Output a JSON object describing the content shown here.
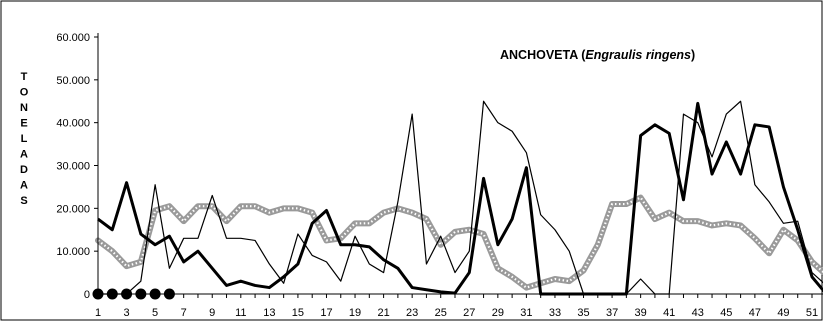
{
  "chart_data": {
    "type": "line",
    "title": {
      "prefix": "ANCHOVETA (",
      "italic": "Engraulis ringens",
      "suffix": ")"
    },
    "ylabel": "TONELADAS",
    "ylim": [
      0,
      60000
    ],
    "xlim": [
      1,
      52
    ],
    "y_ticks": [
      0,
      10000,
      20000,
      30000,
      40000,
      50000,
      60000
    ],
    "y_tick_labels": [
      "0",
      "10.000",
      "20.000",
      "30.000",
      "40.000",
      "50.000",
      "60.000"
    ],
    "x_tick_labels": [
      "1",
      "3",
      "5",
      "7",
      "9",
      "11",
      "13",
      "15",
      "17",
      "19",
      "21",
      "23",
      "25",
      "27",
      "29",
      "31",
      "33",
      "35",
      "37",
      "39",
      "41",
      "43",
      "45",
      "47",
      "49",
      "51"
    ],
    "grid": false,
    "legend": "none",
    "series": [
      {
        "style": "thick",
        "color": "#000000",
        "x": [
          1,
          2,
          3,
          4,
          5,
          6,
          7,
          8,
          9,
          10,
          11,
          12,
          13,
          14,
          15,
          16,
          17,
          18,
          19,
          20,
          21,
          22,
          23,
          24,
          25,
          26,
          27,
          28,
          29,
          30,
          31,
          32,
          33,
          34,
          35,
          36,
          37,
          38,
          39,
          40,
          41,
          42,
          43,
          44,
          45,
          46,
          47,
          48,
          49,
          50,
          51,
          52
        ],
        "values": [
          17500,
          15000,
          26000,
          14000,
          11500,
          13500,
          7500,
          10000,
          6000,
          2000,
          3000,
          2000,
          1500,
          4000,
          7000,
          16500,
          19500,
          11500,
          11500,
          11000,
          8000,
          6000,
          1500,
          1000,
          500,
          200,
          5000,
          27000,
          11500,
          17500,
          29500,
          0,
          0,
          0,
          0,
          0,
          0,
          0,
          37000,
          39500,
          37500,
          22000,
          44500,
          28000,
          35500,
          28000,
          39500,
          39000,
          25000,
          15000,
          4000,
          0
        ]
      },
      {
        "style": "thin",
        "color": "#000000",
        "x": [
          1,
          2,
          3,
          4,
          5,
          6,
          7,
          8,
          9,
          10,
          11,
          12,
          13,
          14,
          15,
          16,
          17,
          18,
          19,
          20,
          21,
          22,
          23,
          24,
          25,
          26,
          27,
          28,
          29,
          30,
          31,
          32,
          33,
          34,
          35,
          36,
          37,
          38,
          39,
          40,
          41,
          42,
          43,
          44,
          45,
          46,
          47,
          48,
          49,
          50,
          51,
          52
        ],
        "values": [
          0,
          0,
          0,
          3000,
          25500,
          6000,
          13000,
          13000,
          23000,
          13000,
          13000,
          12500,
          7000,
          2500,
          14000,
          9000,
          7500,
          3000,
          13500,
          7000,
          5000,
          21500,
          42000,
          7000,
          13500,
          5000,
          10000,
          45000,
          40000,
          38000,
          33000,
          18500,
          15000,
          10000,
          0,
          0,
          0,
          0,
          3500,
          0,
          0,
          42000,
          40000,
          32000,
          42000,
          45000,
          25500,
          21500,
          16500,
          17000,
          5000,
          2000
        ]
      },
      {
        "style": "grey-dotted",
        "color": "#a0a0a0",
        "x": [
          1,
          2,
          3,
          4,
          5,
          6,
          7,
          8,
          9,
          10,
          11,
          12,
          13,
          14,
          15,
          16,
          17,
          18,
          19,
          20,
          21,
          22,
          23,
          24,
          25,
          26,
          27,
          28,
          29,
          30,
          31,
          32,
          33,
          34,
          35,
          36,
          37,
          38,
          39,
          40,
          41,
          42,
          43,
          44,
          45,
          46,
          47,
          48,
          49,
          50,
          51,
          52
        ],
        "values": [
          12500,
          10000,
          6500,
          7500,
          19500,
          20500,
          17000,
          20500,
          20500,
          17000,
          20500,
          20500,
          19000,
          20000,
          20000,
          19000,
          12500,
          13000,
          16500,
          16500,
          19000,
          20000,
          19000,
          17500,
          11500,
          14500,
          15000,
          14000,
          6000,
          4000,
          1500,
          2500,
          3500,
          3000,
          5500,
          11500,
          21000,
          21000,
          22500,
          17500,
          19000,
          17000,
          17000,
          16000,
          16500,
          16000,
          13000,
          9500,
          15000,
          12500,
          7500,
          4500
        ]
      }
    ],
    "markers": {
      "shape": "circle",
      "color": "#000000",
      "x": [
        1,
        2,
        3,
        4,
        5,
        6
      ],
      "values": [
        0,
        0,
        0,
        0,
        0,
        0
      ]
    }
  }
}
